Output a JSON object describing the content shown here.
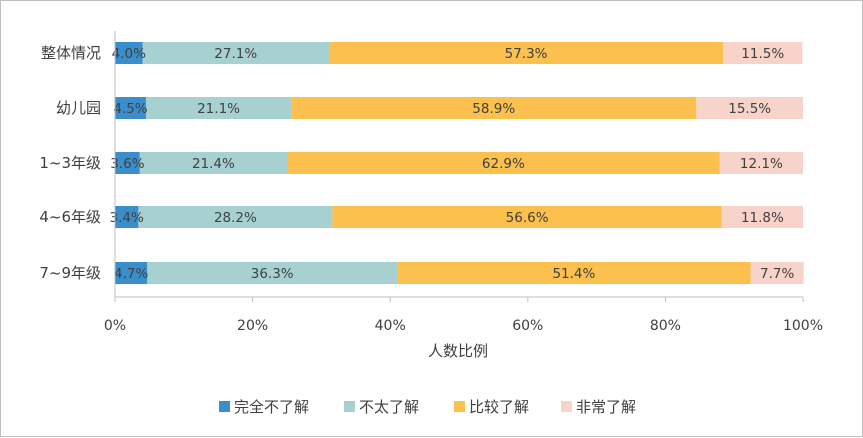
{
  "chart_data": {
    "type": "bar",
    "orientation": "horizontal",
    "stacked": true,
    "categories": [
      "整体情况",
      "幼儿园",
      "1~3年级",
      "4~6年级",
      "7~9年级"
    ],
    "series": [
      {
        "name": "完全不了解",
        "color": "#3a8ecb",
        "values": [
          4.0,
          4.5,
          3.6,
          3.4,
          4.7
        ],
        "labels": [
          "4.0%",
          "4.5%",
          "3.6%",
          "3.4%",
          "4.7%"
        ]
      },
      {
        "name": "不太了解",
        "color": "#a6d1d0",
        "values": [
          27.1,
          21.1,
          21.4,
          28.2,
          36.3
        ],
        "labels": [
          "27.1%",
          "21.1%",
          "21.4%",
          "28.2%",
          "36.3%"
        ]
      },
      {
        "name": "比较了解",
        "color": "#fbc04d",
        "values": [
          57.3,
          58.9,
          62.9,
          56.6,
          51.4
        ],
        "labels": [
          "57.3%",
          "58.9%",
          "62.9%",
          "56.6%",
          "51.4%"
        ]
      },
      {
        "name": "非常了解",
        "color": "#f8d3c9",
        "values": [
          11.5,
          15.5,
          12.1,
          11.8,
          7.7
        ],
        "labels": [
          "11.5%",
          "15.5%",
          "12.1%",
          "11.8%",
          "7.7%"
        ]
      }
    ],
    "xlabel": "人数比例",
    "ylabel": "",
    "xlim": [
      0,
      100
    ],
    "x_ticks": [
      "0%",
      "20%",
      "40%",
      "60%",
      "80%",
      "100%"
    ],
    "grid": false,
    "legend_position": "bottom"
  }
}
